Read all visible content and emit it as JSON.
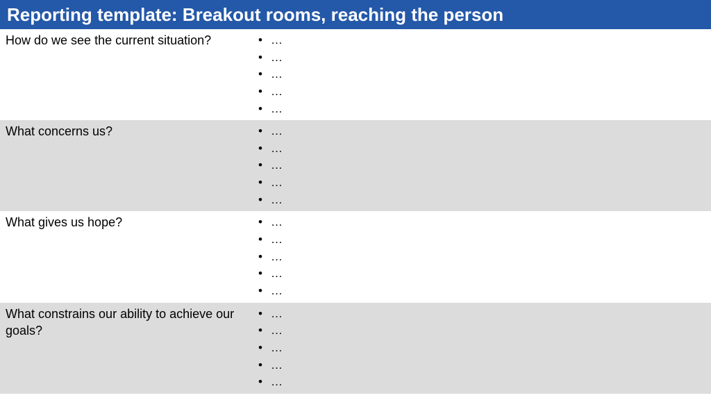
{
  "header": {
    "title": "Reporting template: Breakout rooms, reaching the person"
  },
  "rows": [
    {
      "question": "How do we see the current situation?",
      "shaded": false,
      "bullets": [
        "…",
        "…",
        "…",
        "…",
        "…"
      ]
    },
    {
      "question": "What concerns us?",
      "shaded": true,
      "bullets": [
        "…",
        "…",
        "…",
        "…",
        "…"
      ]
    },
    {
      "question": "What gives us hope?",
      "shaded": false,
      "bullets": [
        "…",
        "…",
        "…",
        "…",
        "…"
      ]
    },
    {
      "question": "What constrains our ability to achieve our goals?",
      "shaded": true,
      "bullets": [
        "…",
        "…",
        "…",
        "…",
        "…"
      ]
    }
  ]
}
